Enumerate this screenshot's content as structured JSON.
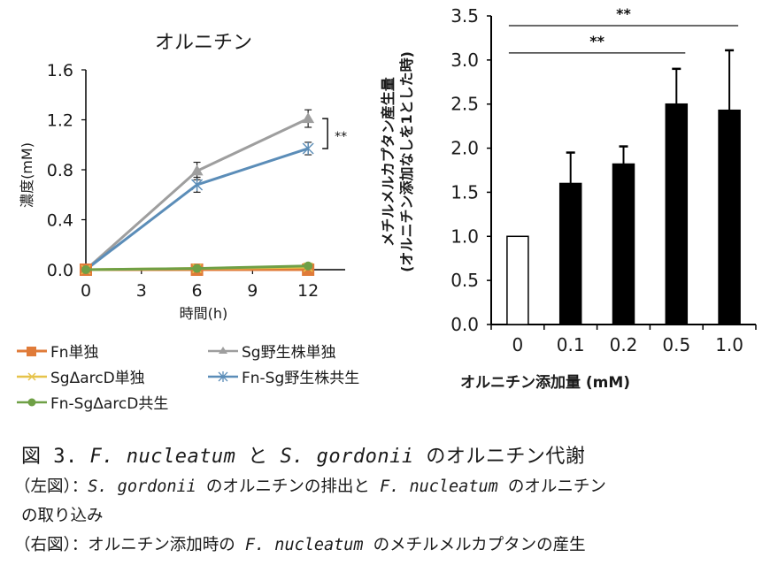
{
  "chart_data": [
    {
      "type": "line",
      "title": "オルニチン",
      "xlabel": "時間(h)",
      "ylabel": "濃度(mM)",
      "x": [
        0,
        6,
        12
      ],
      "x_ticks": [
        "0",
        "3",
        "6",
        "9",
        "12"
      ],
      "x_tick_values": [
        0,
        3,
        6,
        9,
        12
      ],
      "y_ticks": [
        "0.0",
        "0.4",
        "0.8",
        "1.2",
        "1.6"
      ],
      "y_tick_values": [
        0,
        0.4,
        0.8,
        1.2,
        1.6
      ],
      "xlim": [
        0,
        14
      ],
      "ylim": [
        0,
        1.6
      ],
      "grid": false,
      "legend_position": "bottom",
      "series": [
        {
          "name": "Fn単独",
          "color": "#e07b39",
          "marker": "square",
          "values": [
            0.0,
            0.0,
            0.0
          ],
          "errors": [
            0,
            0,
            0
          ]
        },
        {
          "name": "Sg野生株単独",
          "color": "#9e9e9e",
          "marker": "triangle",
          "values": [
            0.0,
            0.79,
            1.21
          ],
          "errors": [
            0,
            0.07,
            0.07
          ]
        },
        {
          "name": "SgΔarcD単独",
          "color": "#e6c34a",
          "marker": "x",
          "values": [
            0.0,
            0.01,
            0.02
          ],
          "errors": [
            0,
            0,
            0
          ]
        },
        {
          "name": "Fn-Sg野生株共生",
          "color": "#5b8db8",
          "marker": "star",
          "values": [
            0.0,
            0.68,
            0.97
          ],
          "errors": [
            0,
            0.06,
            0.05
          ]
        },
        {
          "name": "Fn-SgΔarcD共生",
          "color": "#6fa046",
          "marker": "circle",
          "values": [
            0.0,
            0.01,
            0.03
          ],
          "errors": [
            0,
            0,
            0
          ]
        }
      ],
      "annotations": [
        {
          "text": "**",
          "between": [
            "Sg野生株単独",
            "Fn-Sg野生株共生"
          ],
          "at_x": 12
        }
      ]
    },
    {
      "type": "bar",
      "title": "",
      "categories": [
        "0",
        "0.1",
        "0.2",
        "0.5",
        "1.0"
      ],
      "values": [
        1.0,
        1.6,
        1.82,
        2.5,
        2.43
      ],
      "errors": [
        0,
        0.35,
        0.2,
        0.4,
        0.68
      ],
      "fill": [
        "#ffffff",
        "#000000",
        "#000000",
        "#000000",
        "#000000"
      ],
      "xlabel": "オルニチン添加量 (mM)",
      "ylabel": "メチルメルカプタン産生量",
      "ylabel2": "(オルニチン添加なしを1とした時)",
      "y_ticks": [
        "0.0",
        "0.5",
        "1.0",
        "1.5",
        "2.0",
        "2.5",
        "3.0",
        "3.5"
      ],
      "y_tick_values": [
        0,
        0.5,
        1.0,
        1.5,
        2.0,
        2.5,
        3.0,
        3.5
      ],
      "ylim": [
        0,
        3.5
      ],
      "grid": false,
      "significance": [
        {
          "from": "0",
          "to": "1.0",
          "label": "**",
          "y": 3.39
        },
        {
          "from": "0",
          "to": "0.5",
          "label": "**",
          "y": 3.08
        }
      ]
    }
  ],
  "caption": {
    "title_prefix": "図 3. ",
    "title_sp1": "F. nucleatum",
    "title_mid": " と ",
    "title_sp2": "S. gordonii",
    "title_suffix": " のオルニチン代謝",
    "left_label": "（左図）：",
    "left_sp1": "S. gordonii",
    "left_mid": " のオルニチンの排出と ",
    "left_sp2": "F. nucleatum",
    "left_suffix": " のオルニチン",
    "left_cont": "の取り込み",
    "right_label": "（右図）：オルニチン添加時の ",
    "right_sp": "F. nucleatum",
    "right_suffix": " のメチルメルカプタンの産生"
  }
}
